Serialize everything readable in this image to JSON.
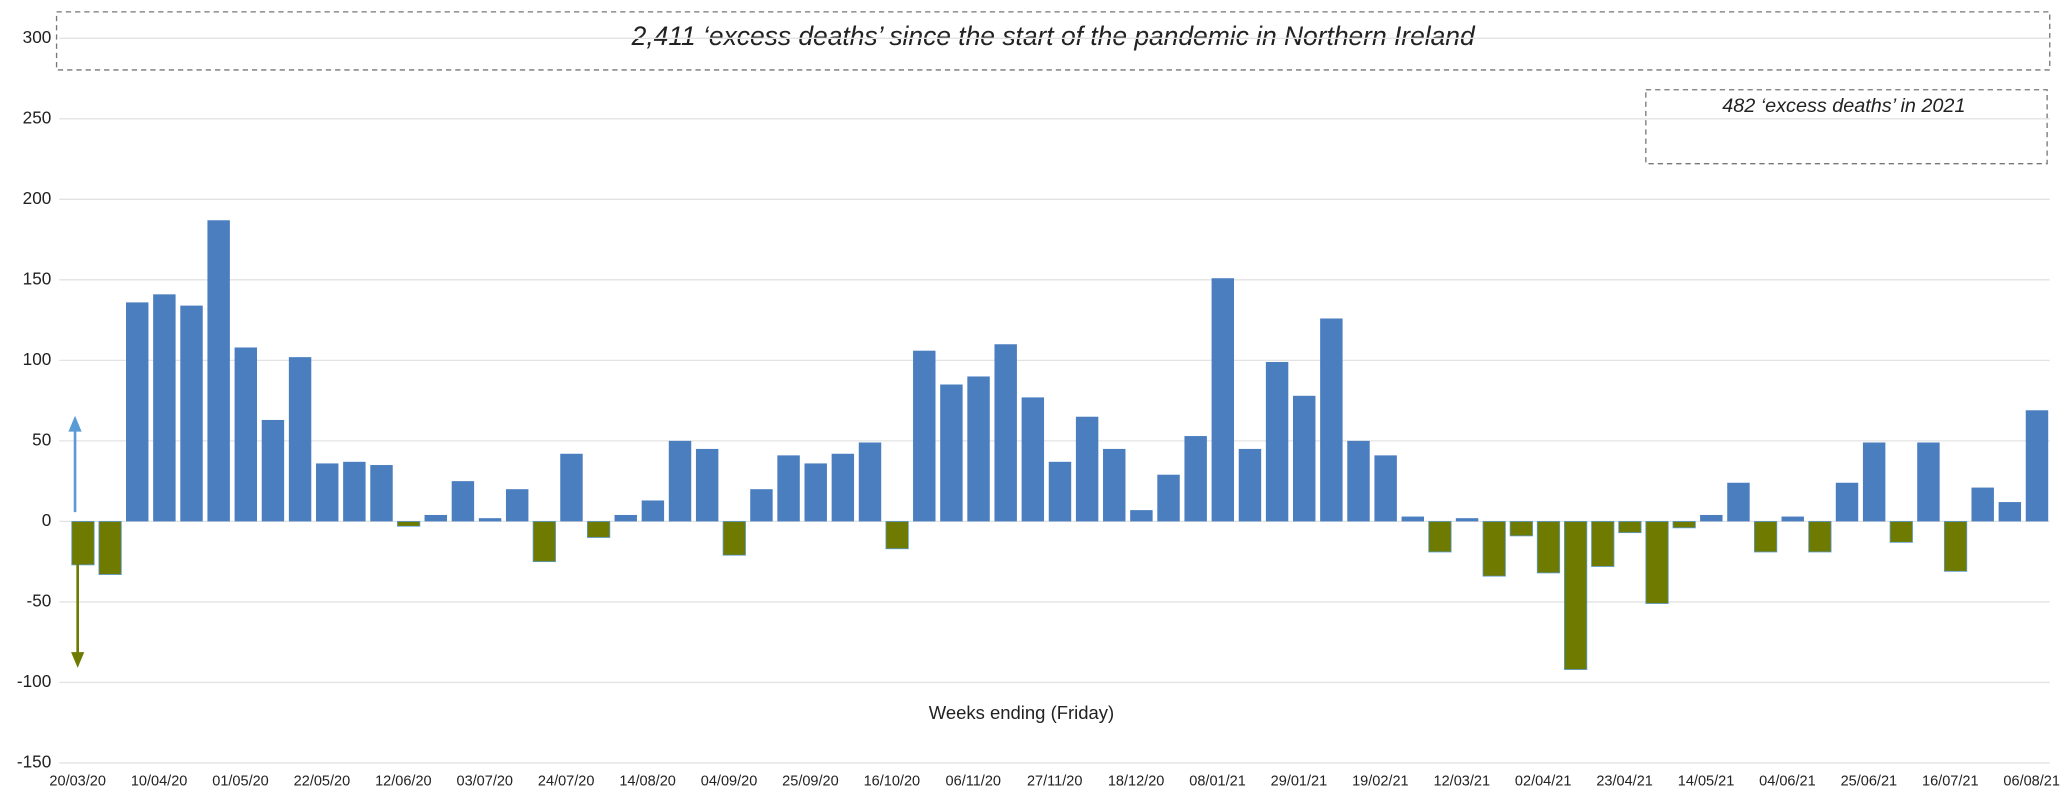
{
  "chart_data": {
    "type": "bar",
    "title": "2,411 ‘excess deaths’ since the start of the pandemic in Northern Ireland",
    "annotation": "482 ‘excess deaths’ in 2021",
    "x_label": "Weeks ending (Friday)",
    "categories": [
      "20/03/20",
      null,
      null,
      "10/04/20",
      null,
      null,
      "01/05/20",
      null,
      null,
      "22/05/20",
      null,
      null,
      "12/06/20",
      null,
      null,
      "03/07/20",
      null,
      null,
      "24/07/20",
      null,
      null,
      "14/08/20",
      null,
      null,
      "04/09/20",
      null,
      null,
      "25/09/20",
      null,
      null,
      "16/10/20",
      null,
      null,
      "06/11/20",
      null,
      null,
      "27/11/20",
      null,
      null,
      "18/12/20",
      null,
      null,
      "08/01/21",
      null,
      null,
      "29/01/21",
      null,
      null,
      "19/02/21",
      null,
      null,
      "12/03/21",
      null,
      null,
      "02/04/21",
      null,
      null,
      "23/04/21",
      null,
      null,
      "14/05/21",
      null,
      null,
      "04/06/21",
      null,
      null,
      "25/06/21",
      null,
      null,
      "16/07/21",
      null,
      null,
      "06/08/21"
    ],
    "values": [
      -27,
      -33,
      136,
      141,
      134,
      187,
      108,
      63,
      102,
      36,
      37,
      35,
      -3,
      4,
      25,
      2,
      20,
      -25,
      42,
      -10,
      4,
      13,
      50,
      45,
      -21,
      20,
      41,
      36,
      42,
      49,
      -17,
      106,
      85,
      90,
      110,
      77,
      37,
      65,
      45,
      7,
      29,
      53,
      151,
      45,
      99,
      78,
      126,
      50,
      41,
      3,
      -19,
      2,
      -34,
      -9,
      -32,
      -92,
      -28,
      -7,
      -51,
      -4,
      4,
      24,
      -19,
      3,
      -19,
      24,
      49,
      -13,
      49,
      -31,
      21,
      12,
      69
    ],
    "colors": {
      "positive": "#4a7ebf",
      "negative": "#6e7b00"
    },
    "ylim": [
      -150,
      300
    ],
    "yticks": [
      -150,
      -100,
      -50,
      0,
      50,
      100,
      150,
      200,
      250,
      300
    ],
    "grid": true
  }
}
